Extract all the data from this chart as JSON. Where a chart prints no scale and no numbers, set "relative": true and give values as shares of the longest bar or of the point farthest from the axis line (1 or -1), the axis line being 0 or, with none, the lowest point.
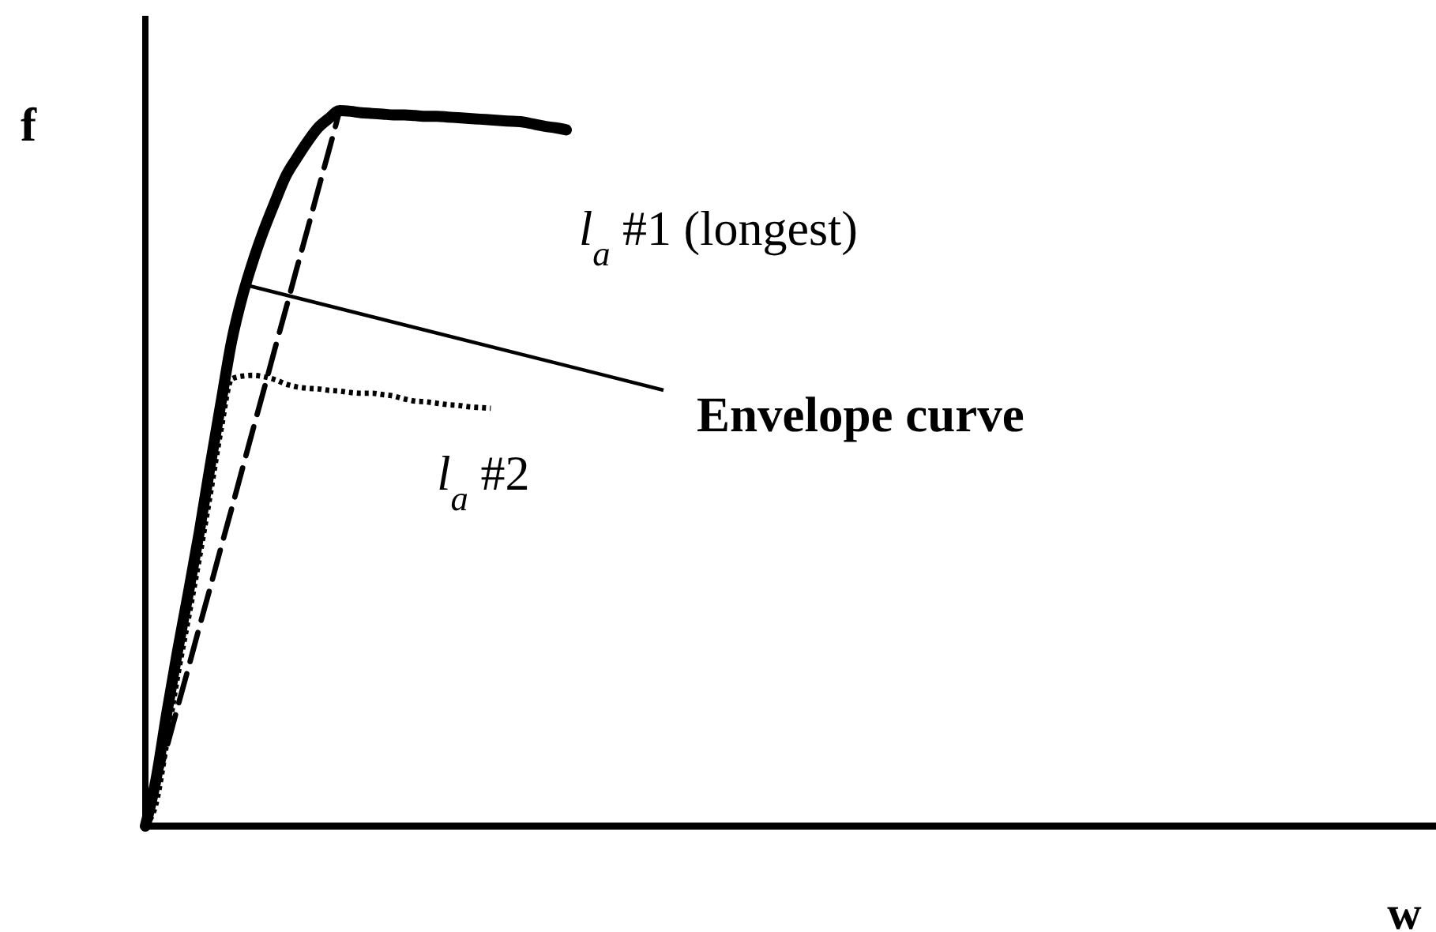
{
  "chart_data": {
    "type": "line",
    "relative": true,
    "xlabel": "w",
    "ylabel": "f",
    "categories": [
      null,
      null,
      null,
      null,
      null,
      null,
      null,
      null,
      null,
      null,
      null,
      null,
      null,
      null,
      null,
      null,
      null,
      null,
      null,
      null,
      null,
      null,
      null,
      null,
      null,
      null,
      null,
      null,
      null,
      null,
      null,
      null,
      null,
      null,
      null,
      null,
      null,
      null,
      null,
      null,
      null,
      null,
      null,
      null,
      null,
      null,
      null,
      null,
      null,
      null,
      null,
      null,
      null,
      null,
      null,
      null,
      null,
      null,
      null,
      null,
      null,
      null,
      null,
      null,
      null,
      null,
      null,
      null,
      null,
      null,
      null,
      null,
      null,
      null,
      null,
      null,
      null,
      null,
      null,
      null,
      null,
      null,
      null,
      null,
      null,
      null,
      null,
      null,
      null,
      null,
      null,
      null,
      null,
      null,
      null,
      null,
      null,
      null,
      null,
      null,
      null,
      null,
      null,
      null,
      null,
      null,
      null,
      null,
      null,
      null,
      null,
      null,
      null,
      null,
      null,
      null,
      null,
      null,
      null,
      null
    ],
    "series": [
      {
        "name": "l$_{a}$ #1 (longest)",
        "color": "#000000",
        "line_style": "solid",
        "values": [
          0,
          0.066,
          0.159,
          0.246,
          0.327,
          0.411,
          0.503,
          0.591,
          0.678,
          0.741,
          0.791,
          0.834,
          0.872,
          0.908,
          0.933,
          0.956,
          0.976,
          0.989,
          1,
          0.999,
          0.997,
          0.996,
          0.995,
          0.994,
          0.994,
          0.993,
          0.992,
          0.992,
          0.991,
          0.99,
          0.989,
          0.988,
          0.987,
          0.986,
          0.985,
          0.984,
          0.981,
          0.978,
          0.976,
          0.973,
          null,
          null,
          null,
          null,
          null,
          null,
          null,
          null,
          null,
          null,
          null,
          null,
          null,
          null,
          null,
          null,
          null,
          null,
          null,
          null,
          null,
          null,
          null,
          null,
          null,
          null,
          null,
          null,
          null,
          null,
          null,
          null,
          null,
          null,
          null,
          null,
          null,
          null,
          null,
          null,
          null,
          null,
          null,
          null,
          null,
          null,
          null,
          null,
          null,
          null,
          null,
          null,
          null,
          null,
          null,
          null,
          null,
          null,
          null,
          null,
          null,
          null,
          null,
          null,
          null,
          null,
          null,
          null,
          null,
          null,
          null,
          null,
          null,
          null,
          null,
          null,
          null,
          null,
          null,
          null
        ]
      },
      {
        "color": "#000000",
        "line_style": "dashed",
        "values": [
          0,
          0.056,
          0.111,
          0.167,
          0.222,
          0.278,
          0.333,
          0.389,
          0.444,
          0.5,
          0.556,
          0.611,
          0.667,
          0.722,
          0.778,
          0.833,
          0.889,
          0.944,
          1,
          null,
          null,
          null,
          null,
          null,
          null,
          null,
          null,
          null,
          null,
          null,
          null,
          null,
          null,
          null,
          null,
          null,
          null,
          null,
          null,
          null,
          null,
          null,
          null,
          null,
          null,
          null,
          null,
          null,
          null,
          null,
          null,
          null,
          null,
          null,
          null,
          null,
          null,
          null,
          null,
          null,
          null,
          null,
          null,
          null,
          null,
          null,
          null,
          null,
          null,
          null,
          null,
          null,
          null,
          null,
          null,
          null,
          null,
          null,
          null,
          null,
          null,
          null,
          null,
          null,
          null,
          null,
          null,
          null,
          null,
          null,
          null,
          null,
          null,
          null,
          null,
          null,
          null,
          null,
          null,
          null,
          null,
          null,
          null,
          null,
          null,
          null,
          null,
          null,
          null,
          null,
          null,
          null,
          null,
          null,
          null,
          null,
          null,
          null,
          null,
          null
        ]
      },
      {
        "name": "l$_{a}$ #2",
        "color": "#000000",
        "line_style": "dotted",
        "values": [
          0,
          0.032,
          0.118,
          0.21,
          0.291,
          0.374,
          0.462,
          0.553,
          0.625,
          0.629,
          0.63,
          0.628,
          0.624,
          0.618,
          0.614,
          0.612,
          0.611,
          0.609,
          0.608,
          0.606,
          0.605,
          0.605,
          0.603,
          0.601,
          0.597,
          0.594,
          0.593,
          0.591,
          0.589,
          0.588,
          0.586,
          0.585,
          0.584,
          null,
          null,
          null,
          null,
          null,
          null,
          null,
          null,
          null,
          null,
          null,
          null,
          null,
          null,
          null,
          null,
          null,
          null,
          null,
          null,
          null,
          null,
          null,
          null,
          null,
          null,
          null,
          null,
          null,
          null,
          null,
          null,
          null,
          null,
          null,
          null,
          null,
          null,
          null,
          null,
          null,
          null,
          null,
          null,
          null,
          null,
          null,
          null,
          null,
          null,
          null,
          null,
          null,
          null,
          null,
          null,
          null,
          null,
          null,
          null,
          null,
          null,
          null,
          null,
          null,
          null,
          null,
          null,
          null,
          null,
          null,
          null,
          null,
          null,
          null,
          null,
          null,
          null,
          null,
          null,
          null,
          null,
          null,
          null,
          null,
          null,
          null
        ]
      }
    ],
    "annotations": [
      "Envelope curve"
    ]
  }
}
